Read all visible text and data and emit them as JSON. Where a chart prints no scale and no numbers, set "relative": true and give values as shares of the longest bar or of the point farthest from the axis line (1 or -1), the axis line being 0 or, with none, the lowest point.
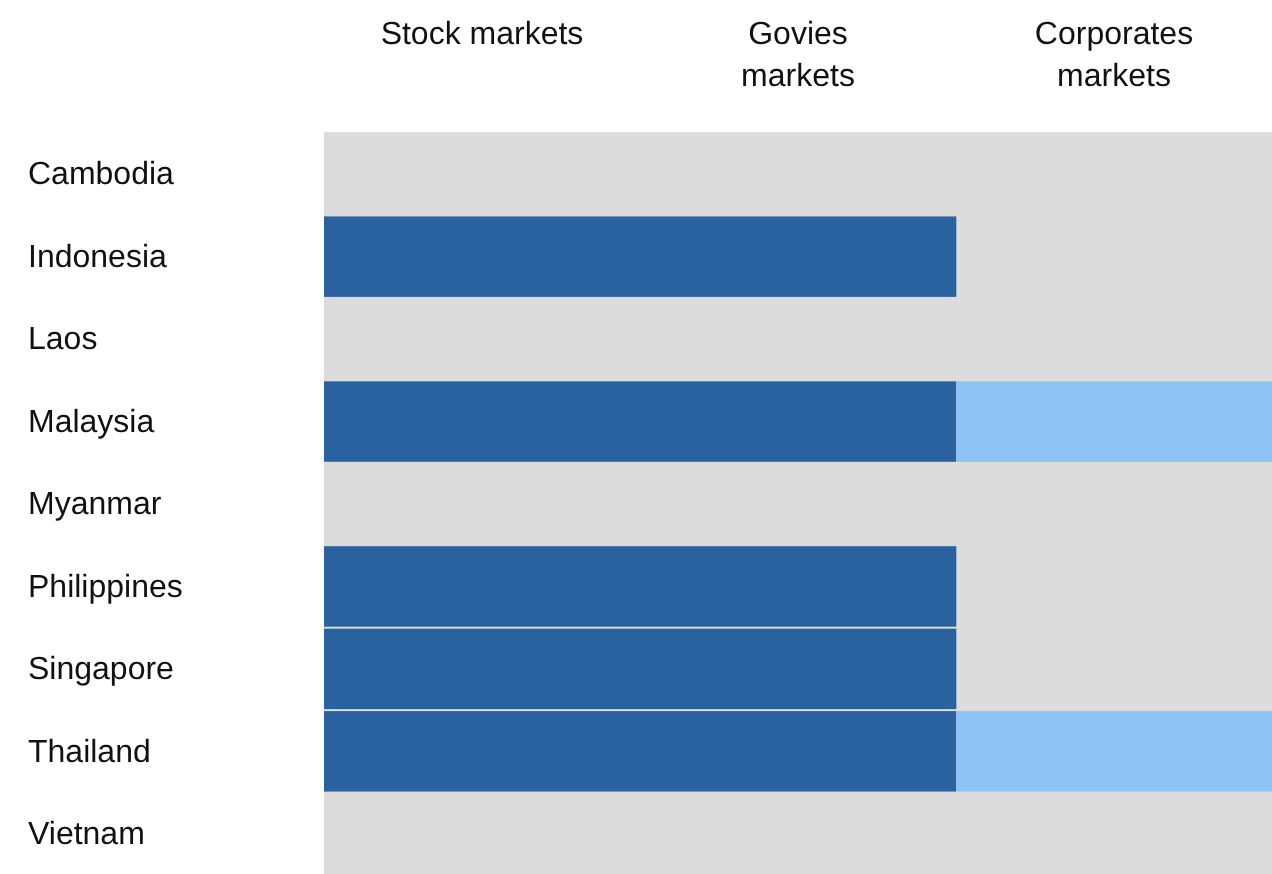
{
  "chart_data": {
    "type": "bar",
    "orientation": "horizontal",
    "stacked": true,
    "relative": true,
    "categories": [
      "Cambodia",
      "Indonesia",
      "Laos",
      "Malaysia",
      "Myanmar",
      "Philippines",
      "Singapore",
      "Thailand",
      "Vietnam"
    ],
    "series": [
      {
        "color": "#2a62a0",
        "values": [
          0,
          0.667,
          0,
          0.667,
          0,
          0.667,
          0.667,
          0.667,
          0
        ]
      },
      {
        "color": "#8cc4f6",
        "values": [
          0,
          0,
          0,
          0.333,
          0,
          0,
          0,
          0.333,
          0
        ]
      }
    ],
    "annotations": [
      "Stock markets",
      "Govies markets",
      "Corporates markets"
    ]
  }
}
